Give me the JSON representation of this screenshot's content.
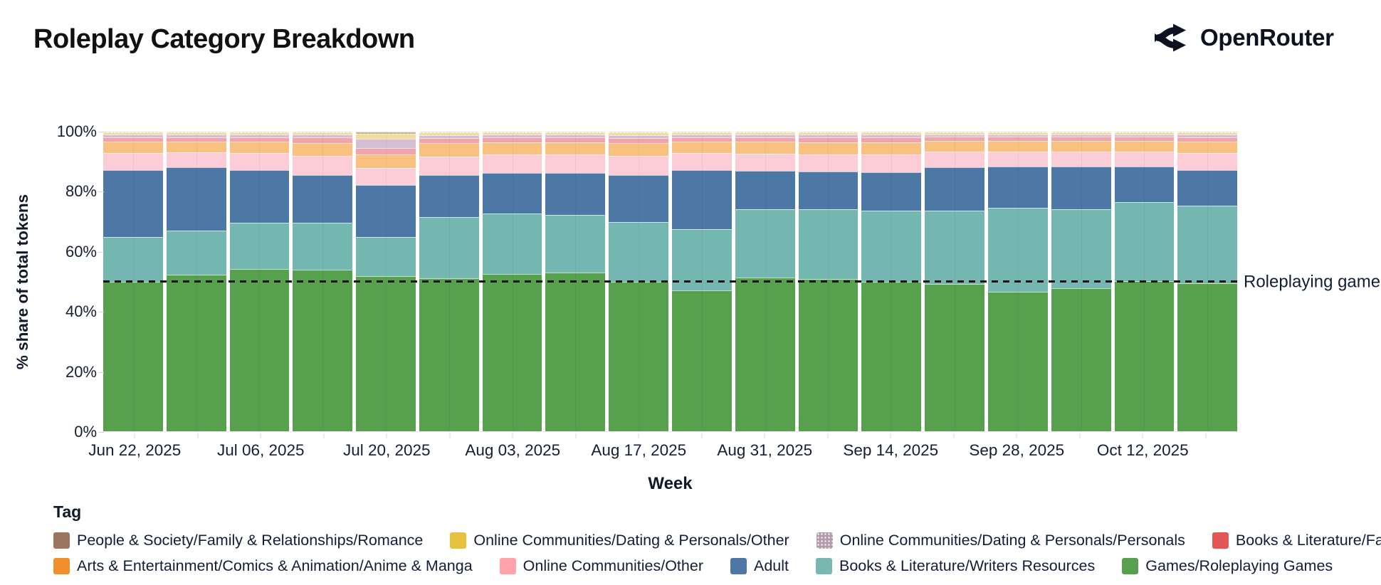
{
  "header": {
    "title": "Roleplay Category Breakdown",
    "logo_text": "OpenRouter"
  },
  "axes": {
    "y_title": "% share of total tokens",
    "x_title": "Week"
  },
  "annotation": {
    "text": "Roleplaying games",
    "y_percent": 50,
    "line_style": "black dashed"
  },
  "legend": {
    "title": "Tag",
    "rows": [
      [
        8,
        7,
        6,
        5
      ],
      [
        4,
        3,
        2,
        1,
        0
      ]
    ]
  },
  "chart_data": {
    "type": "bar",
    "stacked": true,
    "percent_stacked": true,
    "title": "Roleplay Category Breakdown",
    "xlabel": "Week",
    "ylabel": "% share of total tokens",
    "ylim": [
      0,
      100
    ],
    "y_ticks": [
      {
        "v": 0,
        "label": "0%"
      },
      {
        "v": 20,
        "label": "20%"
      },
      {
        "v": 40,
        "label": "40%"
      },
      {
        "v": 60,
        "label": "60%"
      },
      {
        "v": 80,
        "label": "80%"
      },
      {
        "v": 100,
        "label": "100%"
      }
    ],
    "categories": [
      "Jun 22, 2025",
      "",
      "Jul 06, 2025",
      "",
      "Jul 20, 2025",
      "",
      "Aug 03, 2025",
      "",
      "Aug 17, 2025",
      "",
      "Aug 31, 2025",
      "",
      "Sep 14, 2025",
      "",
      "Sep 28, 2025",
      "",
      "Oct 12, 2025",
      ""
    ],
    "series": [
      {
        "id": "games-roleplaying-games",
        "name": "Games/Roleplaying Games",
        "color": "#57a04d",
        "bar_color": "#57a04d",
        "values": [
          50.0,
          52.3,
          54.2,
          54.0,
          51.8,
          51.1,
          52.4,
          52.9,
          50.0,
          47.0,
          51.3,
          50.8,
          49.8,
          49.2,
          46.5,
          47.7,
          50.1,
          49.4
        ]
      },
      {
        "id": "books-literature-writers-resources",
        "name": "Books & Literature/Writers Resources",
        "color": "#78b8b1",
        "bar_color": "#74b7b1",
        "values": [
          14.9,
          14.8,
          15.5,
          15.7,
          13.1,
          20.5,
          20.2,
          19.2,
          19.9,
          20.5,
          22.7,
          23.2,
          23.9,
          24.5,
          28.2,
          26.3,
          26.5,
          25.8
        ]
      },
      {
        "id": "adult",
        "name": "Adult",
        "color": "#4d78a6",
        "bar_color": "#4d78a6",
        "values": [
          22.2,
          21.0,
          17.5,
          15.8,
          17.4,
          13.8,
          13.6,
          14.1,
          15.6,
          19.6,
          12.9,
          12.6,
          12.7,
          14.4,
          13.6,
          14.3,
          11.7,
          11.9
        ]
      },
      {
        "id": "online-communities-other",
        "name": "Online Communities/Other",
        "color": "#ffa3aa",
        "bar_color": "#fccdd6",
        "values": [
          5.7,
          5.1,
          5.6,
          6.4,
          5.5,
          6.4,
          6.1,
          6.1,
          6.4,
          5.7,
          5.8,
          5.9,
          6.0,
          5.2,
          5.1,
          5.1,
          5.1,
          5.7
        ]
      },
      {
        "id": "anime-manga",
        "name": "Arts & Entertainment/Comics & Animation/Anime & Manga",
        "color": "#f28e2b",
        "bar_color": "#f8c180",
        "values": [
          3.9,
          3.6,
          3.8,
          4.4,
          4.5,
          4.4,
          4.1,
          4.1,
          4.3,
          3.9,
          3.9,
          4.0,
          4.1,
          3.6,
          3.5,
          3.5,
          3.5,
          3.9
        ]
      },
      {
        "id": "books-literature-fan-fiction",
        "name": "Books & Literature/Fan Fiction",
        "color": "#e25756",
        "bar_color": "#f2a3ab",
        "values": [
          1.5,
          1.4,
          1.5,
          1.7,
          2.2,
          1.7,
          1.6,
          1.6,
          1.7,
          1.5,
          1.6,
          1.6,
          1.6,
          1.4,
          1.4,
          1.4,
          1.4,
          1.5
        ]
      },
      {
        "id": "dating-personals-personals",
        "name": "Online Communities/Dating & Personals/Personals",
        "color": "#b29cac",
        "bar_color": "#d3bed4",
        "pattern": "dots",
        "values": [
          0.9,
          0.9,
          0.9,
          1.0,
          3.2,
          1.0,
          1.0,
          1.0,
          1.0,
          0.9,
          0.9,
          1.0,
          1.0,
          0.8,
          0.8,
          0.8,
          0.8,
          0.9
        ]
      },
      {
        "id": "dating-personals-other",
        "name": "Online Communities/Dating & Personals/Other",
        "color": "#e7c23f",
        "bar_color": "#f2dc9b",
        "pattern": "dashes",
        "values": [
          0.6,
          0.6,
          0.7,
          0.7,
          1.6,
          0.8,
          0.7,
          0.7,
          0.8,
          0.6,
          0.6,
          0.6,
          0.6,
          0.6,
          0.6,
          0.6,
          0.6,
          0.6
        ]
      },
      {
        "id": "family-relationships-romance",
        "name": "People & Society/Family & Relationships/Romance",
        "color": "#9c755f",
        "bar_color": "#cbb3a0",
        "values": [
          0.3,
          0.3,
          0.3,
          0.3,
          0.7,
          0.3,
          0.3,
          0.3,
          0.3,
          0.3,
          0.3,
          0.3,
          0.3,
          0.3,
          0.3,
          0.3,
          0.3,
          0.3
        ]
      }
    ]
  }
}
